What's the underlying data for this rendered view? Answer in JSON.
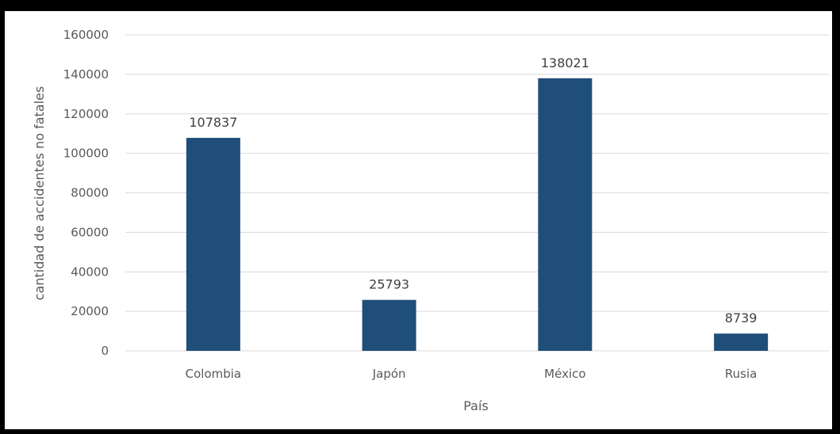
{
  "chart_data": {
    "type": "bar",
    "title": "",
    "xlabel": "País",
    "ylabel": "cantidad de accidentes no fatales",
    "categories": [
      "Colombia",
      "Japón",
      "México",
      "Rusia"
    ],
    "values": [
      107837,
      25793,
      138021,
      8739
    ],
    "data_labels": [
      "107837",
      "25793",
      "138021",
      "8739"
    ],
    "ylim": [
      0,
      160000
    ],
    "yticks": [
      0,
      20000,
      40000,
      60000,
      80000,
      100000,
      120000,
      140000,
      160000
    ],
    "grid": true,
    "legend": "none",
    "bar_color": "#1F4E79",
    "grid_color": "#D9D9D9"
  }
}
